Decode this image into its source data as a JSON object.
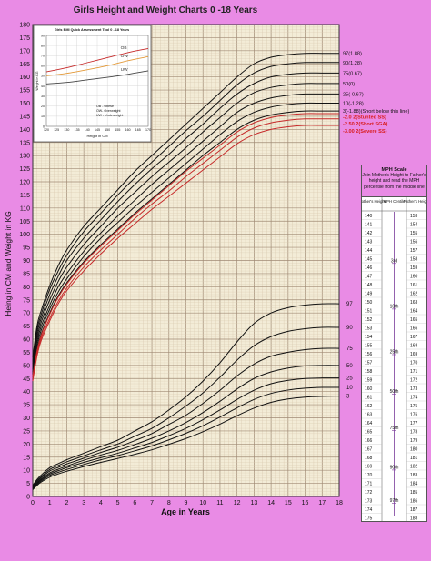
{
  "title": "Girls Height and Weight Charts 0 -18 Years",
  "colors": {
    "background": "#e98be5",
    "plot_bg": "#f3ecd7",
    "grid_minor": "#d9c9b0",
    "grid_major": "#a08a74",
    "line_black": "#111111",
    "line_red": "#c62a2a",
    "label_red": "#d81b1b"
  },
  "chart_data": [
    {
      "type": "line",
      "title": "Girls Height and Weight Charts 0 -18 Years",
      "xlabel": "Age in Years",
      "ylabel": "Heing in CM and Weight in KG",
      "xlim": [
        0,
        18
      ],
      "ylim": [
        0,
        180
      ],
      "x_ticks": [
        "0",
        "1",
        "2",
        "3",
        "4",
        "5",
        "6",
        "7",
        "8",
        "9",
        "10",
        "11",
        "12",
        "13",
        "14",
        "15",
        "16",
        "17",
        "18"
      ],
      "y_ticks": [
        "0",
        "5",
        "10",
        "15",
        "20",
        "25",
        "30",
        "35",
        "40",
        "45",
        "50",
        "55",
        "60",
        "65",
        "70",
        "75",
        "80",
        "85",
        "90",
        "95",
        "100",
        "105",
        "110",
        "115",
        "120",
        "125",
        "130",
        "135",
        "140",
        "145",
        "150",
        "155",
        "160",
        "165",
        "170",
        "175",
        "180"
      ],
      "grid": true,
      "x": [
        0,
        0.25,
        0.5,
        1,
        1.5,
        2,
        3,
        4,
        5,
        6,
        7,
        8,
        9,
        10,
        11,
        12,
        13,
        14,
        15,
        16,
        17,
        18
      ],
      "height_series": [
        {
          "name": "97(1.88)",
          "color": "black",
          "values": [
            53,
            65,
            71,
            80.5,
            88,
            94,
            103,
            110,
            117,
            124,
            130,
            136,
            142,
            148,
            154,
            160,
            165,
            167.5,
            168.5,
            169,
            169,
            169
          ]
        },
        {
          "name": "90(1.28)",
          "color": "black",
          "values": [
            51.5,
            63.5,
            69.5,
            79,
            86,
            92,
            101,
            108,
            115,
            121.5,
            127.5,
            133.5,
            139.5,
            145,
            151,
            157,
            161.5,
            164,
            165,
            165.5,
            165.5,
            165.5
          ]
        },
        {
          "name": "75(0.67)",
          "color": "black",
          "values": [
            50.5,
            62,
            68,
            77,
            84,
            90,
            98.5,
            105.5,
            112.5,
            119,
            125,
            130.5,
            136.5,
            142,
            148,
            153.5,
            157.5,
            160,
            161,
            161.5,
            161.5,
            161.5
          ]
        },
        {
          "name": "50(0)",
          "color": "black",
          "values": [
            49.5,
            60.5,
            66.5,
            75,
            82,
            87.5,
            96,
            103,
            110,
            116,
            122,
            127.5,
            133,
            139,
            144.5,
            150,
            154,
            156,
            157,
            157.5,
            157.5,
            157.5
          ]
        },
        {
          "name": "25(-0.67)",
          "color": "black",
          "values": [
            48.5,
            59,
            65,
            73,
            80,
            85,
            93.5,
            100.5,
            107,
            113,
            119,
            124.5,
            130,
            135.5,
            141,
            146.5,
            150,
            152,
            153,
            153.5,
            153.5,
            153.5
          ]
        },
        {
          "name": "10(-1.28)",
          "color": "black",
          "values": [
            47.5,
            57.5,
            63.5,
            71.5,
            78,
            83,
            91.5,
            98.5,
            104.5,
            110.5,
            116,
            121.5,
            127,
            132.5,
            138,
            143,
            146.5,
            148.5,
            149.5,
            150,
            150,
            150
          ]
        },
        {
          "name": "3(-1.88)(Short below this line)",
          "color": "black",
          "values": [
            46.5,
            56,
            62,
            70,
            76.5,
            81.5,
            89.5,
            96,
            102,
            108,
            113.5,
            119,
            124.5,
            130,
            135,
            140,
            143.5,
            145.5,
            146.5,
            147,
            147,
            147
          ]
        },
        {
          "name": "-2.0 2(Stunted SS)",
          "color": "red",
          "values": [
            46,
            55.5,
            61.5,
            69.5,
            76,
            81,
            89,
            95.5,
            101.5,
            107.5,
            113,
            118.5,
            124,
            129,
            134,
            139,
            142.5,
            144.5,
            145.5,
            146,
            146,
            146
          ]
        },
        {
          "name": "-2.50 2(Short SGA)",
          "color": "red",
          "values": [
            45,
            54.5,
            60.5,
            68,
            74.5,
            79.5,
            87.5,
            94,
            100,
            106,
            111.5,
            116.5,
            122,
            127,
            132,
            137,
            140.5,
            142.5,
            143.5,
            144,
            144,
            144
          ]
        },
        {
          "name": "-3.00 2(Severe SS)",
          "color": "red",
          "values": [
            44,
            53.5,
            59.5,
            67,
            73.5,
            78.5,
            86,
            92.5,
            98.5,
            104,
            109.5,
            114.5,
            119.5,
            124.5,
            129.5,
            134.5,
            138,
            140,
            141,
            141.5,
            141.5,
            141.5
          ]
        }
      ],
      "weight_series": [
        {
          "name": "97",
          "color": "black",
          "values": [
            4.2,
            6.5,
            8.2,
            11,
            12.5,
            14,
            16.5,
            19,
            21.5,
            25,
            28.5,
            33,
            38,
            44,
            51,
            59,
            66,
            70,
            72,
            73,
            73.5,
            73.5
          ]
        },
        {
          "name": "90",
          "color": "black",
          "values": [
            3.9,
            6,
            7.6,
            10.3,
            11.8,
            13.2,
            15.5,
            17.8,
            20,
            23,
            26,
            30,
            34.5,
            39.5,
            45.5,
            52,
            57.5,
            61,
            63,
            64,
            64.5,
            64.5
          ]
        },
        {
          "name": "75",
          "color": "black",
          "values": [
            3.6,
            5.6,
            7.2,
            9.7,
            11.1,
            12.4,
            14.6,
            16.8,
            18.8,
            21.3,
            24,
            27.5,
            31,
            35.5,
            40.5,
            46,
            50.5,
            53.5,
            55,
            56,
            56.5,
            56.5
          ]
        },
        {
          "name": "50",
          "color": "black",
          "values": [
            3.3,
            5.2,
            6.7,
            9,
            10.4,
            11.6,
            13.8,
            15.8,
            17.6,
            19.8,
            22.2,
            25,
            28.2,
            32,
            36.3,
            41,
            45,
            47.5,
            49,
            49.8,
            50,
            50
          ]
        },
        {
          "name": "25",
          "color": "black",
          "values": [
            3.1,
            4.9,
            6.3,
            8.5,
            9.8,
            11,
            13,
            14.8,
            16.5,
            18.5,
            20.6,
            23.2,
            26,
            29.3,
            33,
            37,
            40.5,
            43,
            44.3,
            45,
            45.2,
            45.2
          ]
        },
        {
          "name": "10",
          "color": "black",
          "values": [
            2.9,
            4.6,
            5.9,
            8,
            9.2,
            10.3,
            12.2,
            14,
            15.6,
            17.4,
            19.3,
            21.6,
            24.1,
            27,
            30.3,
            33.8,
            37,
            39.3,
            40.6,
            41.3,
            41.6,
            41.6
          ]
        },
        {
          "name": "3",
          "color": "black",
          "values": [
            2.6,
            4.2,
            5.5,
            7.4,
            8.6,
            9.6,
            11.4,
            13,
            14.5,
            16.1,
            17.8,
            19.9,
            22.1,
            24.7,
            27.6,
            30.8,
            33.7,
            35.9,
            37.2,
            37.9,
            38.2,
            38.3
          ]
        }
      ]
    },
    {
      "type": "line",
      "title": "Girls BMI Quick Assessment Tool 0 - 18 Years",
      "xlabel": "Height in CM",
      "ylabel": "Weight in KG",
      "xlim": [
        120,
        170
      ],
      "ylim": [
        0,
        90
      ],
      "x_ticks": [
        "120",
        "125",
        "130",
        "135",
        "140",
        "145",
        "150",
        "155",
        "160",
        "165",
        "170"
      ],
      "y_ticks": [
        "0",
        "10",
        "20",
        "30",
        "40",
        "50",
        "60",
        "70",
        "80",
        "90"
      ],
      "x": [
        120,
        130,
        140,
        150,
        160,
        170
      ],
      "series": [
        {
          "name": "OB",
          "color": "#c62a2a",
          "values": [
            54,
            58,
            63,
            68,
            73,
            77
          ]
        },
        {
          "name": "OW",
          "color": "#e39a3a",
          "values": [
            50,
            52.5,
            56,
            60,
            65,
            69
          ]
        },
        {
          "name": "UW",
          "color": "#444444",
          "values": [
            42,
            43.5,
            46,
            48.5,
            51.5,
            55
          ]
        }
      ],
      "legend": [
        "OB - Obese",
        "OW- Overweight",
        "UW - Underweight"
      ]
    }
  ],
  "mph": {
    "title": "MPH Scale",
    "instructions": "Join Mother's Height to Father's height and read the MPH percentile from the middle line",
    "col_mother": "Mother's Height",
    "col_centile": "MPH Centile",
    "col_father": "Father's Height",
    "mother_heights": [
      "140",
      "141",
      "142",
      "143",
      "144",
      "145",
      "146",
      "147",
      "148",
      "149",
      "150",
      "151",
      "152",
      "153",
      "154",
      "155",
      "156",
      "157",
      "158",
      "159",
      "160",
      "161",
      "162",
      "163",
      "164",
      "165",
      "166",
      "167",
      "168",
      "169",
      "170",
      "171",
      "172",
      "173",
      "174",
      "175"
    ],
    "father_heights": [
      "153",
      "154",
      "155",
      "156",
      "157",
      "158",
      "159",
      "160",
      "161",
      "162",
      "163",
      "164",
      "165",
      "166",
      "167",
      "168",
      "169",
      "170",
      "171",
      "172",
      "173",
      "174",
      "175",
      "176",
      "177",
      "178",
      "179",
      "180",
      "181",
      "182",
      "183",
      "184",
      "185",
      "186",
      "187",
      "188"
    ],
    "centiles": [
      {
        "label": "3rd",
        "pos": 0.17
      },
      {
        "label": "10th",
        "pos": 0.32
      },
      {
        "label": "25th",
        "pos": 0.47
      },
      {
        "label": "50th",
        "pos": 0.6
      },
      {
        "label": "75th",
        "pos": 0.72
      },
      {
        "label": "90th",
        "pos": 0.85
      },
      {
        "label": "97th",
        "pos": 0.96
      }
    ]
  }
}
